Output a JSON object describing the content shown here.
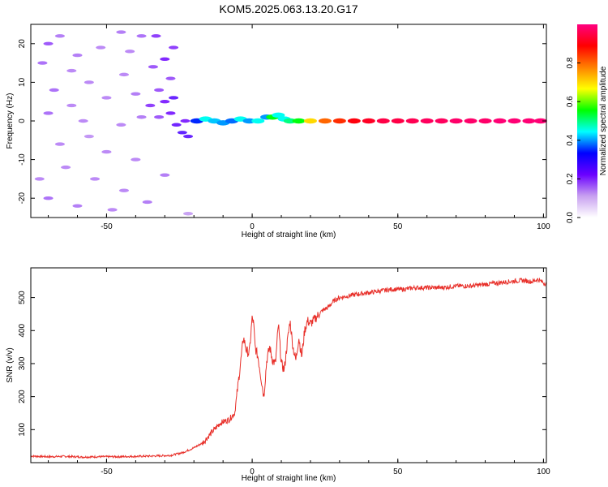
{
  "figure": {
    "title": "KOM5.2025.063.13.20.G17"
  },
  "chart_data": [
    {
      "type": "heatmap",
      "xlabel": "Height of straight line (km)",
      "ylabel": "Frequency (Hz)",
      "xlim": [
        -76,
        101
      ],
      "ylim": [
        -25,
        25
      ],
      "xticks": [
        -50,
        0,
        50,
        100
      ],
      "yticks": [
        -20,
        -10,
        0,
        10,
        20
      ],
      "colorbar": {
        "label": "Normalized spectral amplitude",
        "range": [
          0,
          1
        ],
        "ticks": [
          "0.0",
          "0.2",
          "0.4",
          "0.6",
          "0.8"
        ],
        "colormap": [
          "#ffffff",
          "#c8a0f0",
          "#6a00ff",
          "#0000ff",
          "#00ffff",
          "#00ff00",
          "#ffff00",
          "#ff8000",
          "#ff0000",
          "#ff0080"
        ]
      },
      "cells": [
        [
          -70,
          20,
          0.18
        ],
        [
          -66,
          22,
          0.15
        ],
        [
          -72,
          15,
          0.16
        ],
        [
          -60,
          17,
          0.15
        ],
        [
          -52,
          19,
          0.14
        ],
        [
          -45,
          23,
          0.15
        ],
        [
          -38,
          22,
          0.16
        ],
        [
          -33,
          22,
          0.2
        ],
        [
          -30,
          16,
          0.22
        ],
        [
          -27,
          19,
          0.2
        ],
        [
          -34,
          14,
          0.18
        ],
        [
          -44,
          12,
          0.14
        ],
        [
          -56,
          10,
          0.14
        ],
        [
          -68,
          8,
          0.16
        ],
        [
          -62,
          4,
          0.14
        ],
        [
          -50,
          6,
          0.14
        ],
        [
          -40,
          7,
          0.15
        ],
        [
          -32,
          8,
          0.18
        ],
        [
          -28,
          11,
          0.18
        ],
        [
          -27,
          6,
          0.25
        ],
        [
          -30,
          5,
          0.22
        ],
        [
          -35,
          4,
          0.2
        ],
        [
          -70,
          2,
          0.16
        ],
        [
          -58,
          0,
          0.14
        ],
        [
          -45,
          -1,
          0.14
        ],
        [
          -38,
          1,
          0.15
        ],
        [
          -32,
          1,
          0.18
        ],
        [
          -28,
          2,
          0.22
        ],
        [
          -26,
          -1,
          0.24
        ],
        [
          -24,
          -3,
          0.26
        ],
        [
          -22,
          -4,
          0.25
        ],
        [
          -23,
          0,
          0.22
        ],
        [
          -66,
          -6,
          0.14
        ],
        [
          -50,
          -8,
          0.14
        ],
        [
          -40,
          -10,
          0.14
        ],
        [
          -64,
          -12,
          0.14
        ],
        [
          -54,
          -15,
          0.14
        ],
        [
          -44,
          -18,
          0.14
        ],
        [
          -70,
          -20,
          0.16
        ],
        [
          -60,
          -22,
          0.15
        ],
        [
          -48,
          -23,
          0.14
        ],
        [
          -36,
          -21,
          0.15
        ],
        [
          -30,
          -14,
          0.15
        ],
        [
          -22,
          -24,
          0.12
        ],
        [
          -73,
          -15,
          0.14
        ],
        [
          -56,
          -4,
          0.13
        ],
        [
          -62,
          13,
          0.14
        ],
        [
          -42,
          18,
          0.14
        ],
        [
          -19,
          0,
          0.35
        ],
        [
          -16,
          0.5,
          0.45
        ],
        [
          -13,
          0,
          0.42
        ],
        [
          -10,
          -0.5,
          0.4
        ],
        [
          -7,
          0,
          0.38
        ],
        [
          -4,
          0.5,
          0.45
        ],
        [
          -1,
          0,
          0.4
        ],
        [
          2,
          0,
          0.45
        ],
        [
          5,
          1,
          0.4
        ],
        [
          7,
          1,
          0.55
        ],
        [
          9,
          1.5,
          0.45
        ],
        [
          11,
          0.5,
          0.45
        ],
        [
          13,
          0,
          0.5
        ],
        [
          16,
          0,
          0.55
        ],
        [
          20,
          0,
          0.7
        ],
        [
          25,
          0,
          0.8
        ],
        [
          30,
          0,
          0.85
        ],
        [
          35,
          0,
          0.9
        ],
        [
          40,
          0,
          0.92
        ],
        [
          45,
          0,
          0.95
        ],
        [
          50,
          0,
          0.95
        ],
        [
          55,
          0,
          0.96
        ],
        [
          60,
          0,
          0.97
        ],
        [
          65,
          0,
          0.97
        ],
        [
          70,
          0,
          0.98
        ],
        [
          75,
          0,
          0.98
        ],
        [
          80,
          0,
          0.98
        ],
        [
          85,
          0,
          0.99
        ],
        [
          90,
          0,
          0.99
        ],
        [
          95,
          0,
          0.99
        ],
        [
          99,
          0,
          0.99
        ]
      ]
    },
    {
      "type": "line",
      "xlabel": "Height of straight line (km)",
      "ylabel": "SNR (v/v)",
      "xlim": [
        -76,
        101
      ],
      "ylim": [
        0,
        590
      ],
      "xticks": [
        -50,
        0,
        50,
        100
      ],
      "yticks": [
        100,
        200,
        300,
        400,
        500
      ],
      "series": [
        {
          "color": "#e8302a",
          "x": [
            -76,
            -70,
            -64,
            -58,
            -52,
            -46,
            -40,
            -34,
            -28,
            -24,
            -20,
            -17,
            -14,
            -11,
            -8,
            -6,
            -4,
            -3,
            -2,
            -1,
            0,
            0.5,
            1,
            2,
            3,
            4,
            5,
            6,
            7,
            8,
            9,
            10,
            11,
            12,
            13,
            14,
            15,
            16,
            17,
            18,
            19,
            20,
            22,
            24,
            26,
            28,
            30,
            33,
            36,
            40,
            44,
            48,
            52,
            56,
            60,
            65,
            70,
            75,
            80,
            85,
            90,
            93,
            96,
            98,
            100,
            101
          ],
          "y": [
            20,
            18,
            19,
            17,
            18,
            18,
            19,
            20,
            22,
            30,
            45,
            60,
            90,
            120,
            130,
            150,
            300,
            380,
            340,
            330,
            440,
            420,
            350,
            320,
            260,
            200,
            310,
            350,
            310,
            300,
            420,
            300,
            280,
            360,
            430,
            350,
            310,
            380,
            320,
            400,
            430,
            420,
            440,
            460,
            470,
            490,
            500,
            505,
            510,
            515,
            520,
            525,
            525,
            530,
            530,
            530,
            535,
            535,
            540,
            545,
            550,
            552,
            548,
            555,
            545,
            540
          ]
        }
      ]
    }
  ]
}
